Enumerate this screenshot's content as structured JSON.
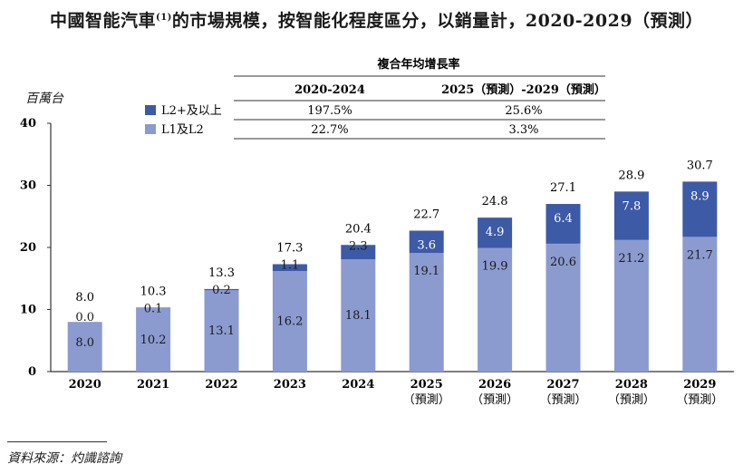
{
  "title": {
    "main": "中國智能汽車",
    "sup": "(1)",
    "rest": "的市場規模，按智能化程度區分，以銷量計，2020-2029（預測）"
  },
  "unit": "百萬台",
  "source": "資料來源：灼識諮詢",
  "cagr_table": {
    "header": "複合年均增長率",
    "columns": [
      "2020-2024",
      "2025（預測）-2029（預測）"
    ],
    "rows": [
      {
        "label": "L2+及以上",
        "values": [
          "197.5%",
          "25.6%"
        ]
      },
      {
        "label": "L1及L2",
        "values": [
          "22.7%",
          "3.3%"
        ]
      }
    ]
  },
  "colors": {
    "l2plus": "#3d5aa6",
    "l1l2": "#8b9bd0",
    "axis": "#333333"
  },
  "chart_data": {
    "type": "bar",
    "stacked": true,
    "categories": [
      [
        "2020"
      ],
      [
        "2021"
      ],
      [
        "2022"
      ],
      [
        "2023"
      ],
      [
        "2024"
      ],
      [
        "2025",
        "（預測）"
      ],
      [
        "2026",
        "（預測）"
      ],
      [
        "2027",
        "（預測）"
      ],
      [
        "2028",
        "（預測）"
      ],
      [
        "2029",
        "（預測）"
      ]
    ],
    "series": [
      {
        "name": "L1及L2",
        "values": [
          8.0,
          10.2,
          13.1,
          16.2,
          18.1,
          19.1,
          19.9,
          20.6,
          21.2,
          21.7
        ]
      },
      {
        "name": "L2+及以上",
        "values": [
          0.0,
          0.1,
          0.2,
          1.1,
          2.3,
          3.6,
          4.9,
          6.4,
          7.8,
          8.9
        ]
      }
    ],
    "totals": [
      8.0,
      10.3,
      13.3,
      17.3,
      20.4,
      22.7,
      24.8,
      27.1,
      28.9,
      30.7
    ],
    "ylim": [
      0,
      40
    ],
    "yticks": [
      0,
      10,
      20,
      30,
      40
    ],
    "ylabel": "百萬台",
    "grid": false,
    "legend": "top-left"
  }
}
